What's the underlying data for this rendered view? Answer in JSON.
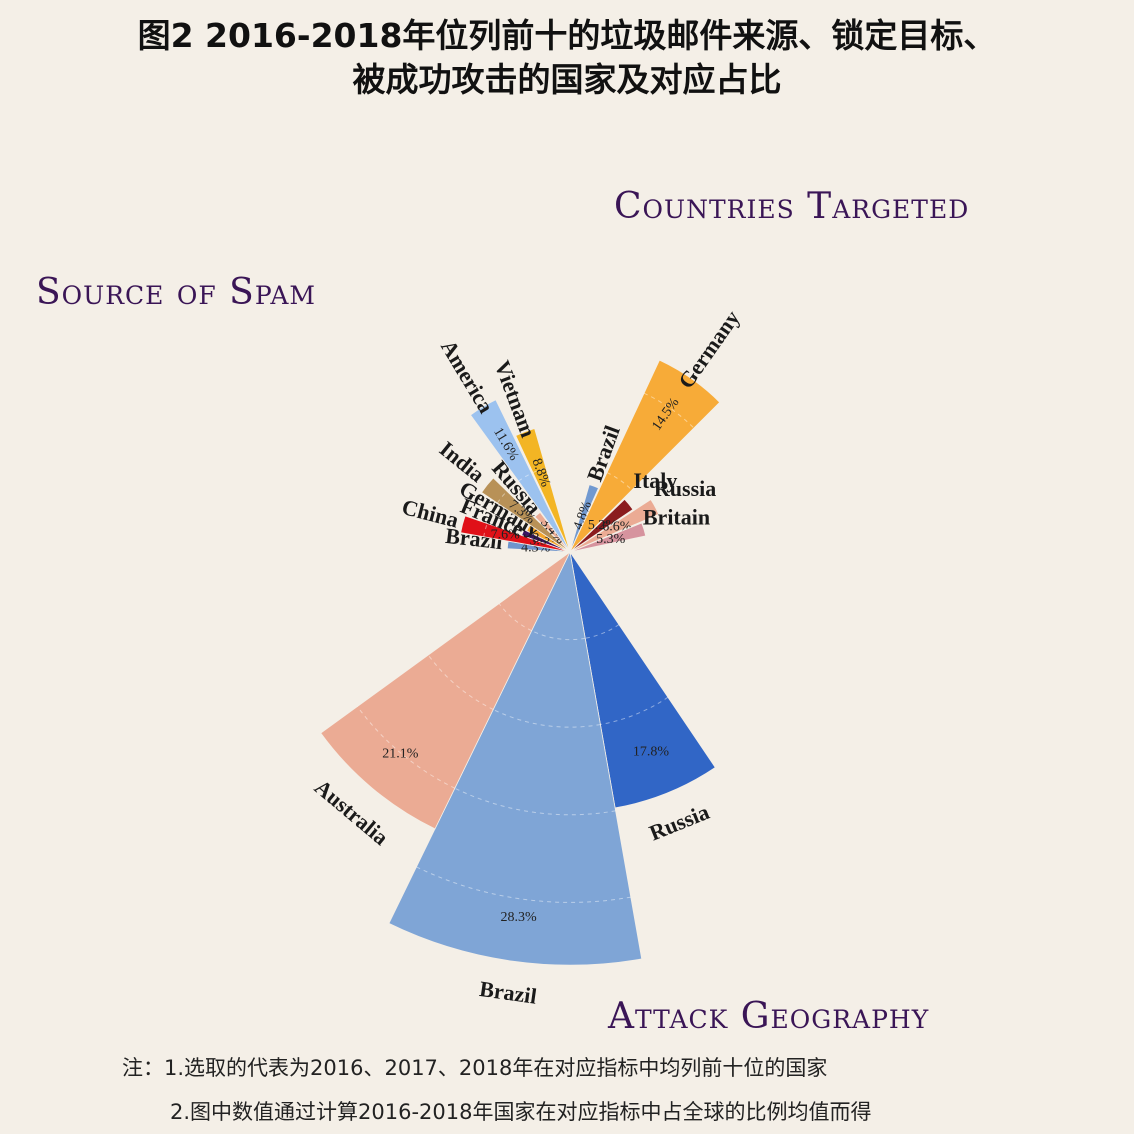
{
  "title": {
    "line1": "图2  2016-2018年位列前十的垃圾邮件来源、锁定目标、",
    "line2": "被成功攻击的国家及对应占比"
  },
  "notes": {
    "note1": "注：1.选取的代表为2016、2017、2018年在对应指标中均列前十位的国家",
    "note2": "2.图中数值通过计算2016-2018年国家在对应指标中占全球的比例均值而得"
  },
  "chart_data": [
    {
      "type": "polar-bar",
      "title": "Source of Spam",
      "unit": "%",
      "categories": [
        "Brazil",
        "China",
        "France",
        "Germany",
        "India",
        "Russia",
        "America",
        "Vietnam"
      ],
      "values": [
        4.3,
        7.6,
        3.5,
        3.3,
        7.3,
        3.4,
        11.6,
        8.8
      ],
      "value_labels": [
        "4.3%",
        "7.6%",
        "3.5%",
        "3.3%",
        "7.3%",
        "3.4%",
        "11.6%",
        "8.8%"
      ],
      "colors": [
        "#6f95cc",
        "#e01018",
        "#3b1463",
        "#f5a52c",
        "#b89157",
        "#ebab94",
        "#9cc2ef",
        "#f3b524"
      ]
    },
    {
      "type": "polar-bar",
      "title": "Countries Targeted",
      "unit": "%",
      "categories": [
        "Brazil",
        "Germany",
        "Italy",
        "Russia",
        "Britain"
      ],
      "values": [
        4.8,
        14.5,
        5.2,
        6.6,
        5.3
      ],
      "value_labels": [
        "4.8%",
        "14.5%",
        "5.2%",
        "6.6%",
        "5.3%"
      ],
      "colors": [
        "#7199d0",
        "#f7ab38",
        "#8b1c1e",
        "#ebab94",
        "#d6939e"
      ]
    },
    {
      "type": "polar-bar",
      "title": "Attack Geography",
      "unit": "%",
      "categories": [
        "Russia",
        "Brazil",
        "Australia"
      ],
      "values": [
        17.8,
        28.3,
        21.1
      ],
      "value_labels": [
        "17.8%",
        "28.3%",
        "21.1%"
      ],
      "colors": [
        "#3166c6",
        "#7fa5d6",
        "#ebab94"
      ]
    }
  ]
}
